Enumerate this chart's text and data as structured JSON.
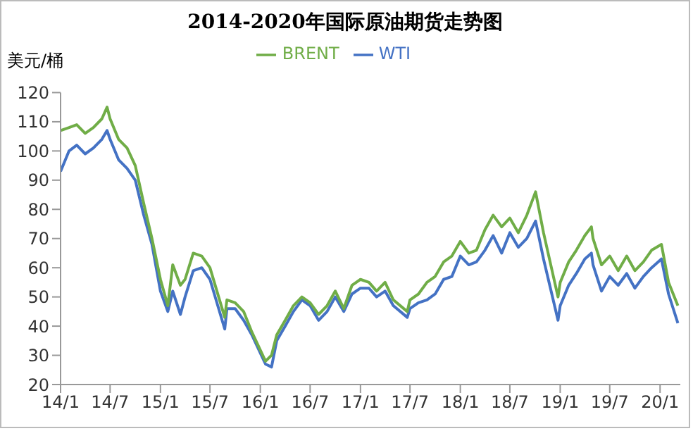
{
  "chart_data": {
    "type": "line",
    "title": "2014-2020年国际原油期货走势图",
    "ylabel": "美元/桶",
    "x": [
      "2014-01-01",
      "2014-02-01",
      "2014-03-01",
      "2014-04-01",
      "2014-05-01",
      "2014-06-01",
      "2014-06-20",
      "2014-07-01",
      "2014-08-01",
      "2014-09-01",
      "2014-10-01",
      "2014-11-01",
      "2014-12-01",
      "2015-01-01",
      "2015-01-28",
      "2015-02-15",
      "2015-03-15",
      "2015-04-01",
      "2015-05-01",
      "2015-06-01",
      "2015-07-01",
      "2015-08-24",
      "2015-09-01",
      "2015-10-01",
      "2015-11-01",
      "2015-12-01",
      "2016-01-20",
      "2016-02-11",
      "2016-03-01",
      "2016-04-01",
      "2016-05-01",
      "2016-06-01",
      "2016-07-01",
      "2016-08-01",
      "2016-09-01",
      "2016-10-01",
      "2016-11-01",
      "2016-12-01",
      "2017-01-01",
      "2017-02-01",
      "2017-03-01",
      "2017-04-01",
      "2017-05-01",
      "2017-06-21",
      "2017-07-01",
      "2017-08-01",
      "2017-09-01",
      "2017-10-01",
      "2017-11-01",
      "2017-12-01",
      "2018-01-01",
      "2018-02-01",
      "2018-03-01",
      "2018-04-01",
      "2018-05-01",
      "2018-06-01",
      "2018-07-01",
      "2018-08-01",
      "2018-09-01",
      "2018-10-03",
      "2018-11-01",
      "2018-12-24",
      "2019-01-01",
      "2019-02-01",
      "2019-03-01",
      "2019-04-01",
      "2019-04-25",
      "2019-05-01",
      "2019-06-01",
      "2019-07-01",
      "2019-08-01",
      "2019-09-01",
      "2019-10-01",
      "2019-11-01",
      "2019-12-01",
      "2020-01-06",
      "2020-02-01",
      "2020-03-06"
    ],
    "series": [
      {
        "name": "WTI",
        "color": "#4472c4",
        "values": [
          93,
          100,
          102,
          99,
          101,
          104,
          107,
          104,
          97,
          94,
          90,
          78,
          68,
          52,
          45,
          52,
          44,
          50,
          59,
          60,
          56,
          39,
          46,
          46,
          42,
          37,
          27,
          26,
          35,
          40,
          45,
          49,
          47,
          42,
          45,
          50,
          45,
          51,
          53,
          53,
          50,
          52,
          47,
          43,
          46,
          48,
          49,
          51,
          56,
          57,
          64,
          61,
          62,
          66,
          71,
          65,
          72,
          67,
          70,
          76,
          63,
          42,
          47,
          54,
          58,
          63,
          65,
          61,
          52,
          57,
          54,
          58,
          53,
          57,
          60,
          63,
          51,
          41
        ]
      },
      {
        "name": "BRENT",
        "color": "#70ad47",
        "values": [
          107,
          108,
          109,
          106,
          108,
          111,
          115,
          111,
          104,
          101,
          95,
          82,
          70,
          56,
          47,
          61,
          54,
          56,
          65,
          64,
          60,
          43,
          49,
          48,
          45,
          38,
          28,
          30,
          37,
          42,
          47,
          50,
          48,
          44,
          47,
          52,
          46,
          54,
          56,
          55,
          52,
          55,
          49,
          45,
          49,
          51,
          55,
          57,
          62,
          64,
          69,
          65,
          66,
          73,
          78,
          74,
          77,
          72,
          78,
          86,
          72,
          50,
          55,
          62,
          66,
          71,
          74,
          70,
          61,
          64,
          59,
          64,
          59,
          62,
          66,
          68,
          55,
          47
        ]
      }
    ],
    "xlim": [
      "2014-01-01",
      "2020-03-15"
    ],
    "xticks": [
      {
        "value": "2014-01-01",
        "label": "14/1"
      },
      {
        "value": "2014-07-01",
        "label": "14/7"
      },
      {
        "value": "2015-01-01",
        "label": "15/1"
      },
      {
        "value": "2015-07-01",
        "label": "15/7"
      },
      {
        "value": "2016-01-01",
        "label": "16/1"
      },
      {
        "value": "2016-07-01",
        "label": "16/7"
      },
      {
        "value": "2017-01-01",
        "label": "17/1"
      },
      {
        "value": "2017-07-01",
        "label": "17/7"
      },
      {
        "value": "2018-01-01",
        "label": "18/1"
      },
      {
        "value": "2018-07-01",
        "label": "18/7"
      },
      {
        "value": "2019-01-01",
        "label": "19/1"
      },
      {
        "value": "2019-07-01",
        "label": "19/7"
      },
      {
        "value": "2020-01-01",
        "label": "20/1"
      }
    ],
    "ylim": [
      20,
      120
    ],
    "yticks": [
      20,
      30,
      40,
      50,
      60,
      70,
      80,
      90,
      100,
      110,
      120
    ],
    "grid": false,
    "legend": "top",
    "marker": "none",
    "line_style": "solid"
  }
}
